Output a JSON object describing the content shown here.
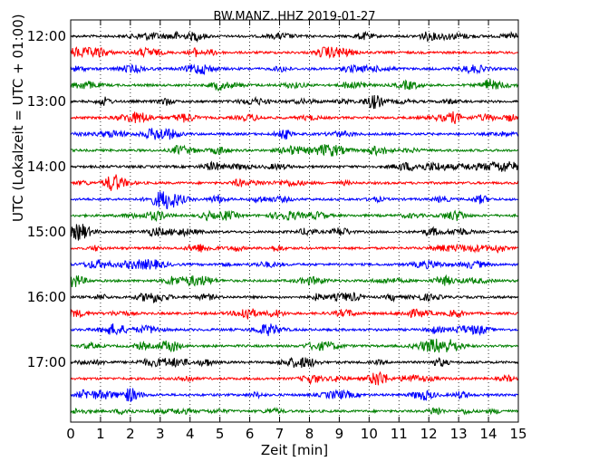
{
  "chart_data": {
    "type": "line",
    "title": "BW.MANZ..HHZ 2019-01-27",
    "xlabel": "Zeit  [min]",
    "ylabel": "UTC (Lokalzeit = UTC + 01:00)",
    "xlim": [
      0,
      15
    ],
    "xticks": [
      "0",
      "1",
      "2",
      "3",
      "4",
      "5",
      "6",
      "7",
      "8",
      "9",
      "10",
      "11",
      "12",
      "13",
      "14",
      "15"
    ],
    "x_grid": "dotted",
    "trace_interval_min": 15,
    "traces_per_hour": 4,
    "yticks": [
      "12:00",
      "13:00",
      "14:00",
      "15:00",
      "16:00",
      "17:00"
    ],
    "color_cycle": [
      "#000000",
      "#ff0000",
      "#0000ff",
      "#008000"
    ],
    "traces": [
      {
        "start": "12:00",
        "color": "#000000"
      },
      {
        "start": "12:15",
        "color": "#ff0000"
      },
      {
        "start": "12:30",
        "color": "#0000ff"
      },
      {
        "start": "12:45",
        "color": "#008000"
      },
      {
        "start": "13:00",
        "color": "#000000"
      },
      {
        "start": "13:15",
        "color": "#ff0000"
      },
      {
        "start": "13:30",
        "color": "#0000ff"
      },
      {
        "start": "13:45",
        "color": "#008000"
      },
      {
        "start": "14:00",
        "color": "#000000"
      },
      {
        "start": "14:15",
        "color": "#ff0000"
      },
      {
        "start": "14:30",
        "color": "#0000ff"
      },
      {
        "start": "14:45",
        "color": "#008000"
      },
      {
        "start": "15:00",
        "color": "#000000"
      },
      {
        "start": "15:15",
        "color": "#ff0000"
      },
      {
        "start": "15:30",
        "color": "#0000ff"
      },
      {
        "start": "15:45",
        "color": "#008000"
      },
      {
        "start": "16:00",
        "color": "#000000"
      },
      {
        "start": "16:15",
        "color": "#ff0000"
      },
      {
        "start": "16:30",
        "color": "#0000ff"
      },
      {
        "start": "16:45",
        "color": "#008000"
      },
      {
        "start": "17:00",
        "color": "#000000"
      },
      {
        "start": "17:15",
        "color": "#ff0000"
      },
      {
        "start": "17:30",
        "color": "#0000ff"
      },
      {
        "start": "17:45",
        "color": "#008000"
      }
    ]
  }
}
